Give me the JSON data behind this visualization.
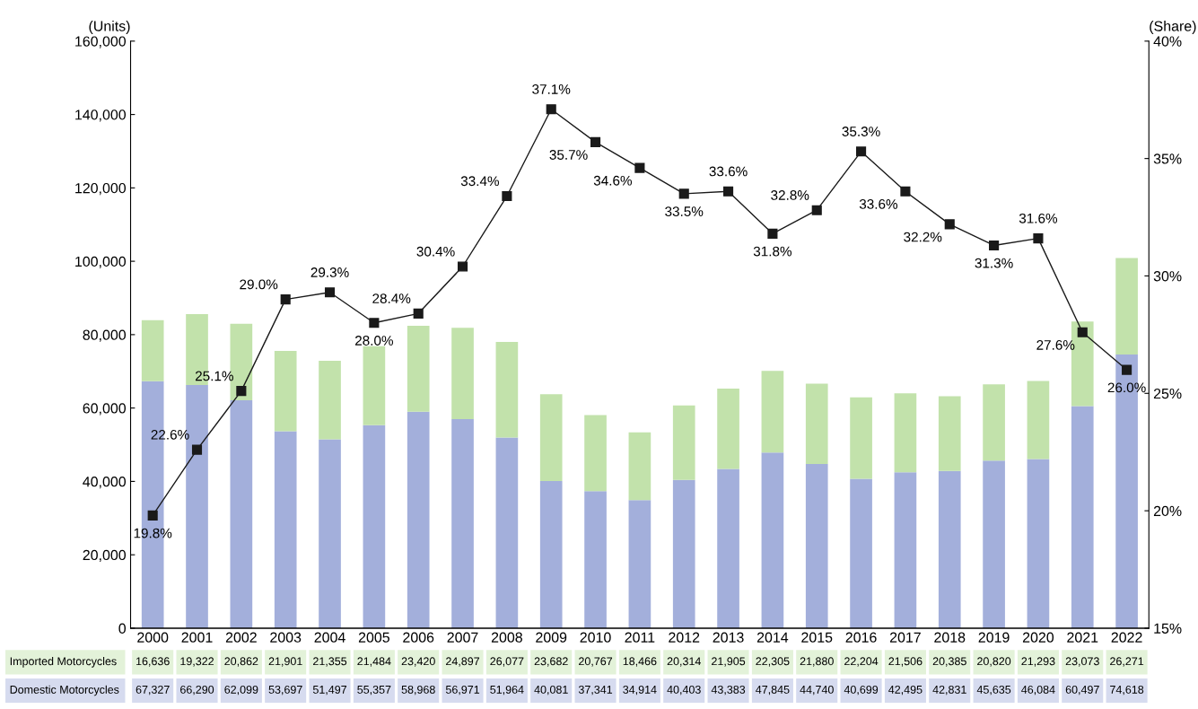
{
  "chart_data": {
    "type": "bar",
    "stacked": true,
    "categories": [
      "2000",
      "2001",
      "2002",
      "2003",
      "2004",
      "2005",
      "2006",
      "2007",
      "2008",
      "2009",
      "2010",
      "2011",
      "2012",
      "2013",
      "2014",
      "2015",
      "2016",
      "2017",
      "2018",
      "2019",
      "2020",
      "2021",
      "2022"
    ],
    "ylabel": "(Units)",
    "y2label": "(Share)",
    "ylim": [
      0,
      160000
    ],
    "yticks": [
      {
        "value": 0,
        "label": "0"
      },
      {
        "value": 20000,
        "label": "20,000"
      },
      {
        "value": 40000,
        "label": "40,000"
      },
      {
        "value": 60000,
        "label": "60,000"
      },
      {
        "value": 80000,
        "label": "80,000"
      },
      {
        "value": 100000,
        "label": "100,000"
      },
      {
        "value": 120000,
        "label": "120,000"
      },
      {
        "value": 140000,
        "label": "140,000"
      },
      {
        "value": 160000,
        "label": "160,000"
      }
    ],
    "y2lim": [
      15,
      40
    ],
    "y2ticks": [
      {
        "value": 15,
        "label": "15%"
      },
      {
        "value": 20,
        "label": "20%"
      },
      {
        "value": 25,
        "label": "25%"
      },
      {
        "value": 30,
        "label": "30%"
      },
      {
        "value": 35,
        "label": "35%"
      },
      {
        "value": 40,
        "label": "40%"
      }
    ],
    "grid": false,
    "legend": "bottom",
    "series": [
      {
        "name": "Domestic Motorcycles",
        "color": "#a3afdb",
        "values": [
          67327,
          66290,
          62099,
          53697,
          51497,
          55357,
          58968,
          56971,
          51964,
          40081,
          37341,
          34914,
          40403,
          43383,
          47845,
          44740,
          40699,
          42495,
          42831,
          45635,
          46084,
          60497,
          74618
        ],
        "value_labels": [
          "67,327",
          "66,290",
          "62,099",
          "53,697",
          "51,497",
          "55,357",
          "58,968",
          "56,971",
          "51,964",
          "40,081",
          "37,341",
          "34,914",
          "40,403",
          "43,383",
          "47,845",
          "44,740",
          "40,699",
          "42,495",
          "42,831",
          "45,635",
          "46,084",
          "60,497",
          "74,618"
        ]
      },
      {
        "name": "Imported Motorcycles",
        "color": "#c2e2ab",
        "values": [
          16636,
          19322,
          20862,
          21901,
          21355,
          21484,
          23420,
          24897,
          26077,
          23682,
          20767,
          18466,
          20314,
          21905,
          22305,
          21880,
          22204,
          21506,
          20385,
          20820,
          21293,
          23073,
          26271
        ],
        "value_labels": [
          "16,636",
          "19,322",
          "20,862",
          "21,901",
          "21,355",
          "21,484",
          "23,420",
          "24,897",
          "26,077",
          "23,682",
          "20,767",
          "18,466",
          "20,314",
          "21,905",
          "22,305",
          "21,880",
          "22,204",
          "21,506",
          "20,385",
          "20,820",
          "21,293",
          "23,073",
          "26,271"
        ]
      },
      {
        "type": "line",
        "axis": "y2",
        "color": "#1a1a1a",
        "marker": "square",
        "line_style": "solid",
        "values": [
          19.8,
          22.6,
          25.1,
          29.0,
          29.3,
          28.0,
          28.4,
          30.4,
          33.4,
          37.1,
          35.7,
          34.6,
          33.5,
          33.6,
          31.8,
          32.8,
          35.3,
          33.6,
          32.2,
          31.3,
          31.6,
          27.6,
          26.0
        ],
        "value_labels": [
          "19.8%",
          "22.6%",
          "25.1%",
          "29.0%",
          "29.3%",
          "28.0%",
          "28.4%",
          "30.4%",
          "33.4%",
          "37.1%",
          "35.7%",
          "34.6%",
          "33.5%",
          "33.6%",
          "31.8%",
          "32.8%",
          "35.3%",
          "33.6%",
          "32.2%",
          "31.3%",
          "31.6%",
          "27.6%",
          "26.0%"
        ]
      }
    ]
  }
}
